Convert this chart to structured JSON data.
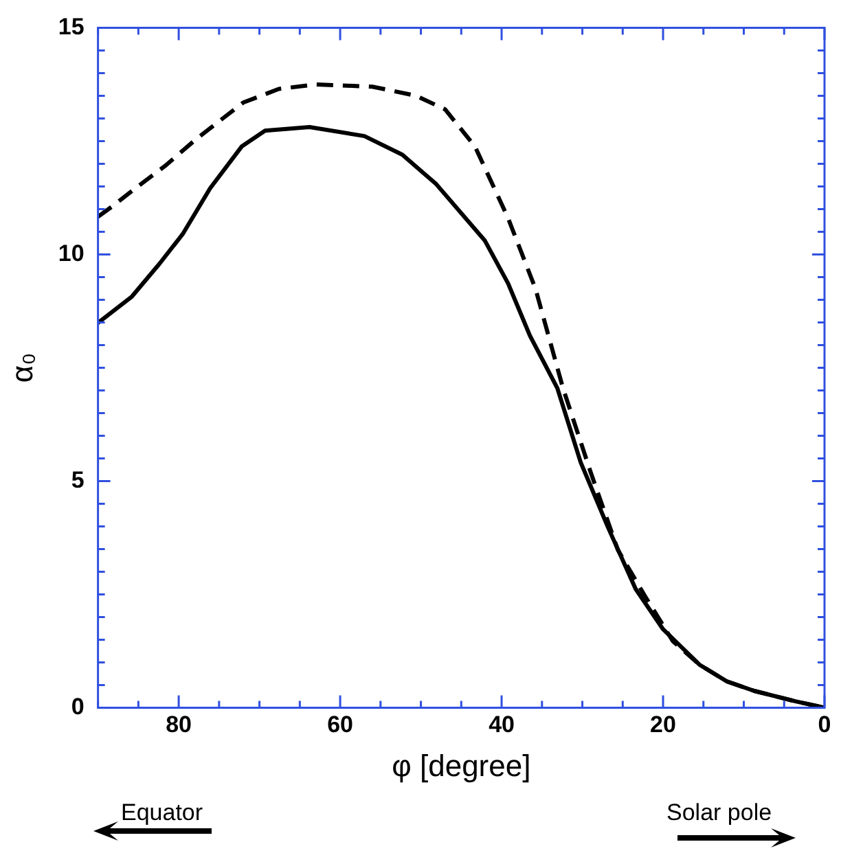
{
  "chart_data": {
    "type": "line",
    "xlabel": "φ [degree]",
    "ylabel": "α₀",
    "xlim": [
      90,
      0
    ],
    "ylim": [
      0,
      15
    ],
    "xticks": [
      {
        "value": 90,
        "label": null
      },
      {
        "value": 85,
        "label": null
      },
      80,
      {
        "value": 75,
        "label": null
      },
      {
        "value": 70,
        "label": null
      },
      {
        "value": 65,
        "label": null
      },
      60,
      {
        "value": 55,
        "label": null
      },
      {
        "value": 50,
        "label": null
      },
      {
        "value": 45,
        "label": null
      },
      40,
      {
        "value": 35,
        "label": null
      },
      {
        "value": 30,
        "label": null
      },
      {
        "value": 25,
        "label": null
      },
      20,
      {
        "value": 15,
        "label": null
      },
      {
        "value": 10,
        "label": null
      },
      {
        "value": 5,
        "label": null
      },
      0
    ],
    "yticks": [
      0,
      {
        "value": 0.5,
        "label": null
      },
      {
        "value": 1,
        "label": null
      },
      {
        "value": 1.5,
        "label": null
      },
      {
        "value": 2,
        "label": null
      },
      {
        "value": 2.5,
        "label": null
      },
      {
        "value": 3,
        "label": null
      },
      {
        "value": 3.5,
        "label": null
      },
      {
        "value": 4,
        "label": null
      },
      {
        "value": 4.5,
        "label": null
      },
      5,
      {
        "value": 5.5,
        "label": null
      },
      {
        "value": 6,
        "label": null
      },
      {
        "value": 6.5,
        "label": null
      },
      {
        "value": 7,
        "label": null
      },
      {
        "value": 7.5,
        "label": null
      },
      {
        "value": 8,
        "label": null
      },
      {
        "value": 8.5,
        "label": null
      },
      {
        "value": 9,
        "label": null
      },
      {
        "value": 9.5,
        "label": null
      },
      10,
      {
        "value": 10.5,
        "label": null
      },
      {
        "value": 11,
        "label": null
      },
      {
        "value": 11.5,
        "label": null
      },
      {
        "value": 12,
        "label": null
      },
      {
        "value": 12.5,
        "label": null
      },
      {
        "value": 13,
        "label": null
      },
      {
        "value": 13.5,
        "label": null
      },
      {
        "value": 14,
        "label": null
      },
      {
        "value": 14.5,
        "label": null
      },
      15
    ],
    "grid": false,
    "legend": false,
    "marker": "none",
    "annotations": [
      "Equator",
      "Solar pole"
    ],
    "series": [
      {
        "color": "#000000",
        "line_style": "solid",
        "x": [
          90,
          85.8,
          82.4,
          79.5,
          76.1,
          72.2,
          69.3,
          63.8,
          57,
          52.3,
          48.1,
          42.1,
          39.2,
          36.5,
          33.1,
          30.2,
          26.8,
          23.4,
          20,
          15.5,
          12.1,
          8.7,
          3.6,
          0
        ],
        "values": [
          8.49,
          9.07,
          9.79,
          10.45,
          11.46,
          12.38,
          12.73,
          12.81,
          12.61,
          12.2,
          11.55,
          10.31,
          9.36,
          8.21,
          7.05,
          5.41,
          3.97,
          2.62,
          1.73,
          0.95,
          0.58,
          0.37,
          0.14,
          0
        ]
      },
      {
        "color": "#000000",
        "line_style": "dashed",
        "x": [
          90,
          88,
          85.8,
          81.7,
          77.8,
          72,
          67.6,
          63,
          56,
          50.6,
          47,
          43.3,
          39.2,
          35.8,
          32.4,
          29,
          25.6,
          22.2,
          18.8,
          15.5,
          12.1,
          8.7,
          3.6,
          0
        ],
        "values": [
          10.83,
          11.09,
          11.4,
          11.95,
          12.55,
          13.35,
          13.65,
          13.75,
          13.7,
          13.5,
          13.2,
          12.38,
          10.8,
          9.24,
          7.05,
          5.21,
          3.48,
          2.45,
          1.47,
          0.95,
          0.58,
          0.37,
          0.14,
          0
        ]
      }
    ]
  }
}
